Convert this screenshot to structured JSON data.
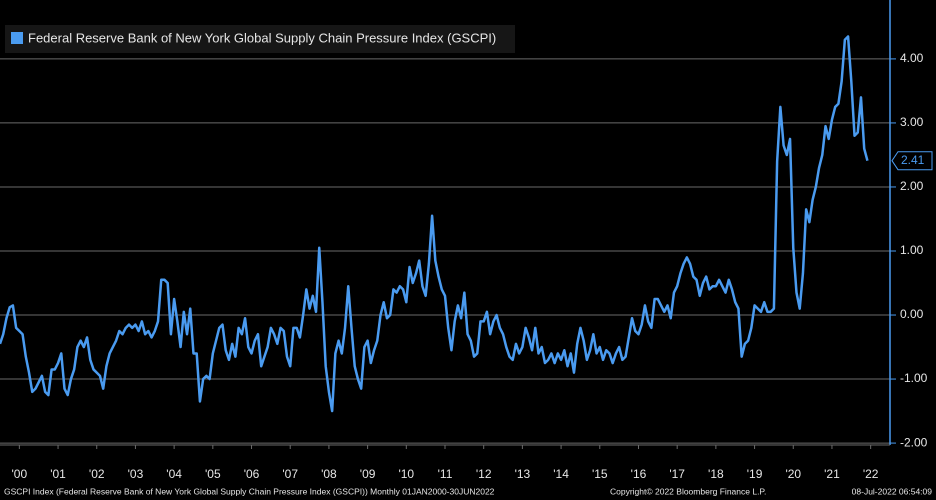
{
  "chart_data": {
    "type": "line",
    "series": [
      {
        "name": "Federal Reserve Bank of New York Global Supply Chain Pressure Index (GSCPI)",
        "color": "#4a9bf0",
        "values": [
          -0.45,
          -0.3,
          -0.05,
          0.12,
          0.15,
          -0.2,
          -0.25,
          -0.3,
          -0.65,
          -0.9,
          -1.2,
          -1.15,
          -1.05,
          -0.95,
          -1.2,
          -1.25,
          -0.85,
          -0.85,
          -0.75,
          -0.6,
          -1.15,
          -1.25,
          -1.0,
          -0.85,
          -0.5,
          -0.4,
          -0.5,
          -0.35,
          -0.7,
          -0.85,
          -0.9,
          -0.95,
          -1.15,
          -0.8,
          -0.6,
          -0.5,
          -0.4,
          -0.25,
          -0.3,
          -0.2,
          -0.15,
          -0.2,
          -0.15,
          -0.25,
          -0.1,
          -0.3,
          -0.25,
          -0.35,
          -0.25,
          -0.1,
          0.55,
          0.55,
          0.5,
          -0.3,
          0.25,
          -0.1,
          -0.5,
          0.05,
          -0.3,
          0.1,
          -0.6,
          -0.6,
          -1.35,
          -1.0,
          -0.95,
          -1.0,
          -0.6,
          -0.4,
          -0.2,
          -0.15,
          -0.55,
          -0.7,
          -0.45,
          -0.65,
          -0.2,
          -0.3,
          -0.05,
          -0.5,
          -0.6,
          -0.4,
          -0.3,
          -0.8,
          -0.65,
          -0.5,
          -0.2,
          -0.3,
          -0.45,
          -0.2,
          -0.25,
          -0.65,
          -0.8,
          -0.2,
          -0.2,
          -0.35,
          0.0,
          0.4,
          0.1,
          0.3,
          0.05,
          1.05,
          0.2,
          -0.8,
          -1.2,
          -1.5,
          -0.6,
          -0.4,
          -0.6,
          -0.2,
          0.45,
          -0.2,
          -0.8,
          -1.0,
          -1.15,
          -0.5,
          -0.4,
          -0.75,
          -0.55,
          -0.4,
          0.0,
          0.2,
          -0.05,
          0.0,
          0.4,
          0.35,
          0.45,
          0.4,
          0.2,
          0.75,
          0.5,
          0.65,
          0.85,
          0.45,
          0.3,
          0.8,
          1.55,
          0.85,
          0.6,
          0.4,
          0.3,
          -0.2,
          -0.55,
          -0.1,
          0.15,
          -0.05,
          0.35,
          -0.3,
          -0.4,
          -0.65,
          -0.6,
          -0.1,
          -0.1,
          0.05,
          -0.3,
          -0.1,
          0.0,
          -0.2,
          -0.3,
          -0.5,
          -0.65,
          -0.7,
          -0.45,
          -0.6,
          -0.5,
          -0.2,
          -0.35,
          -0.55,
          -0.2,
          -0.6,
          -0.5,
          -0.75,
          -0.7,
          -0.6,
          -0.75,
          -0.6,
          -0.7,
          -0.55,
          -0.8,
          -0.6,
          -0.9,
          -0.45,
          -0.2,
          -0.4,
          -0.7,
          -0.55,
          -0.3,
          -0.6,
          -0.5,
          -0.7,
          -0.55,
          -0.6,
          -0.75,
          -0.6,
          -0.5,
          -0.7,
          -0.65,
          -0.35,
          -0.05,
          -0.25,
          -0.3,
          -0.15,
          0.15,
          -0.1,
          -0.2,
          0.25,
          0.25,
          0.15,
          0.05,
          0.15,
          -0.05,
          0.35,
          0.45,
          0.65,
          0.8,
          0.9,
          0.8,
          0.6,
          0.55,
          0.3,
          0.5,
          0.6,
          0.4,
          0.45,
          0.45,
          0.55,
          0.45,
          0.35,
          0.55,
          0.4,
          0.2,
          0.1,
          -0.65,
          -0.45,
          -0.4,
          -0.2,
          0.15,
          0.1,
          0.05,
          0.2,
          0.05,
          0.05,
          0.1,
          2.4,
          3.25,
          2.65,
          2.5,
          2.75,
          1.05,
          0.35,
          0.1,
          0.65,
          1.65,
          1.45,
          1.8,
          2.0,
          2.3,
          2.5,
          2.95,
          2.75,
          3.05,
          3.25,
          3.3,
          3.65,
          4.3,
          4.35,
          3.65,
          2.8,
          2.85,
          3.4,
          2.6,
          2.41
        ]
      }
    ],
    "xlim": [
      0,
      276
    ],
    "xticks": [
      {
        "value": 6,
        "label": "'00"
      },
      {
        "value": 18,
        "label": "'01"
      },
      {
        "value": 30,
        "label": "'02"
      },
      {
        "value": 42,
        "label": "'03"
      },
      {
        "value": 54,
        "label": "'04"
      },
      {
        "value": 66,
        "label": "'05"
      },
      {
        "value": 78,
        "label": "'06"
      },
      {
        "value": 90,
        "label": "'07"
      },
      {
        "value": 102,
        "label": "'08"
      },
      {
        "value": 114,
        "label": "'09"
      },
      {
        "value": 126,
        "label": "'10"
      },
      {
        "value": 138,
        "label": "'11"
      },
      {
        "value": 150,
        "label": "'12"
      },
      {
        "value": 162,
        "label": "'13"
      },
      {
        "value": 174,
        "label": "'14"
      },
      {
        "value": 186,
        "label": "'15"
      },
      {
        "value": 198,
        "label": "'16"
      },
      {
        "value": 210,
        "label": "'17"
      },
      {
        "value": 222,
        "label": "'18"
      },
      {
        "value": 234,
        "label": "'19"
      },
      {
        "value": 246,
        "label": "'20"
      },
      {
        "value": 258,
        "label": "'21"
      },
      {
        "value": 270,
        "label": "'22"
      }
    ],
    "ylim": [
      -2.03,
      4.92
    ],
    "yticks": [
      {
        "value": 4,
        "label": "4.00"
      },
      {
        "value": 3,
        "label": "3.00"
      },
      {
        "value": 2,
        "label": "2.00"
      },
      {
        "value": 1,
        "label": "1.00"
      },
      {
        "value": 0,
        "label": "0.00"
      },
      {
        "value": -1,
        "label": "-1.00"
      },
      {
        "value": -2,
        "label": "-2.00"
      }
    ],
    "grid": true,
    "footer": {
      "source": "GSCPI Index (Federal Reserve Bank of New York Global Supply Chain Pressure Index (GSCPI))  Monthly 01JAN2000-30JUN2022",
      "copyright": "Copyright© 2022 Bloomberg Finance L.P.",
      "timestamp": "08-Jul-2022 06:54:09"
    }
  }
}
